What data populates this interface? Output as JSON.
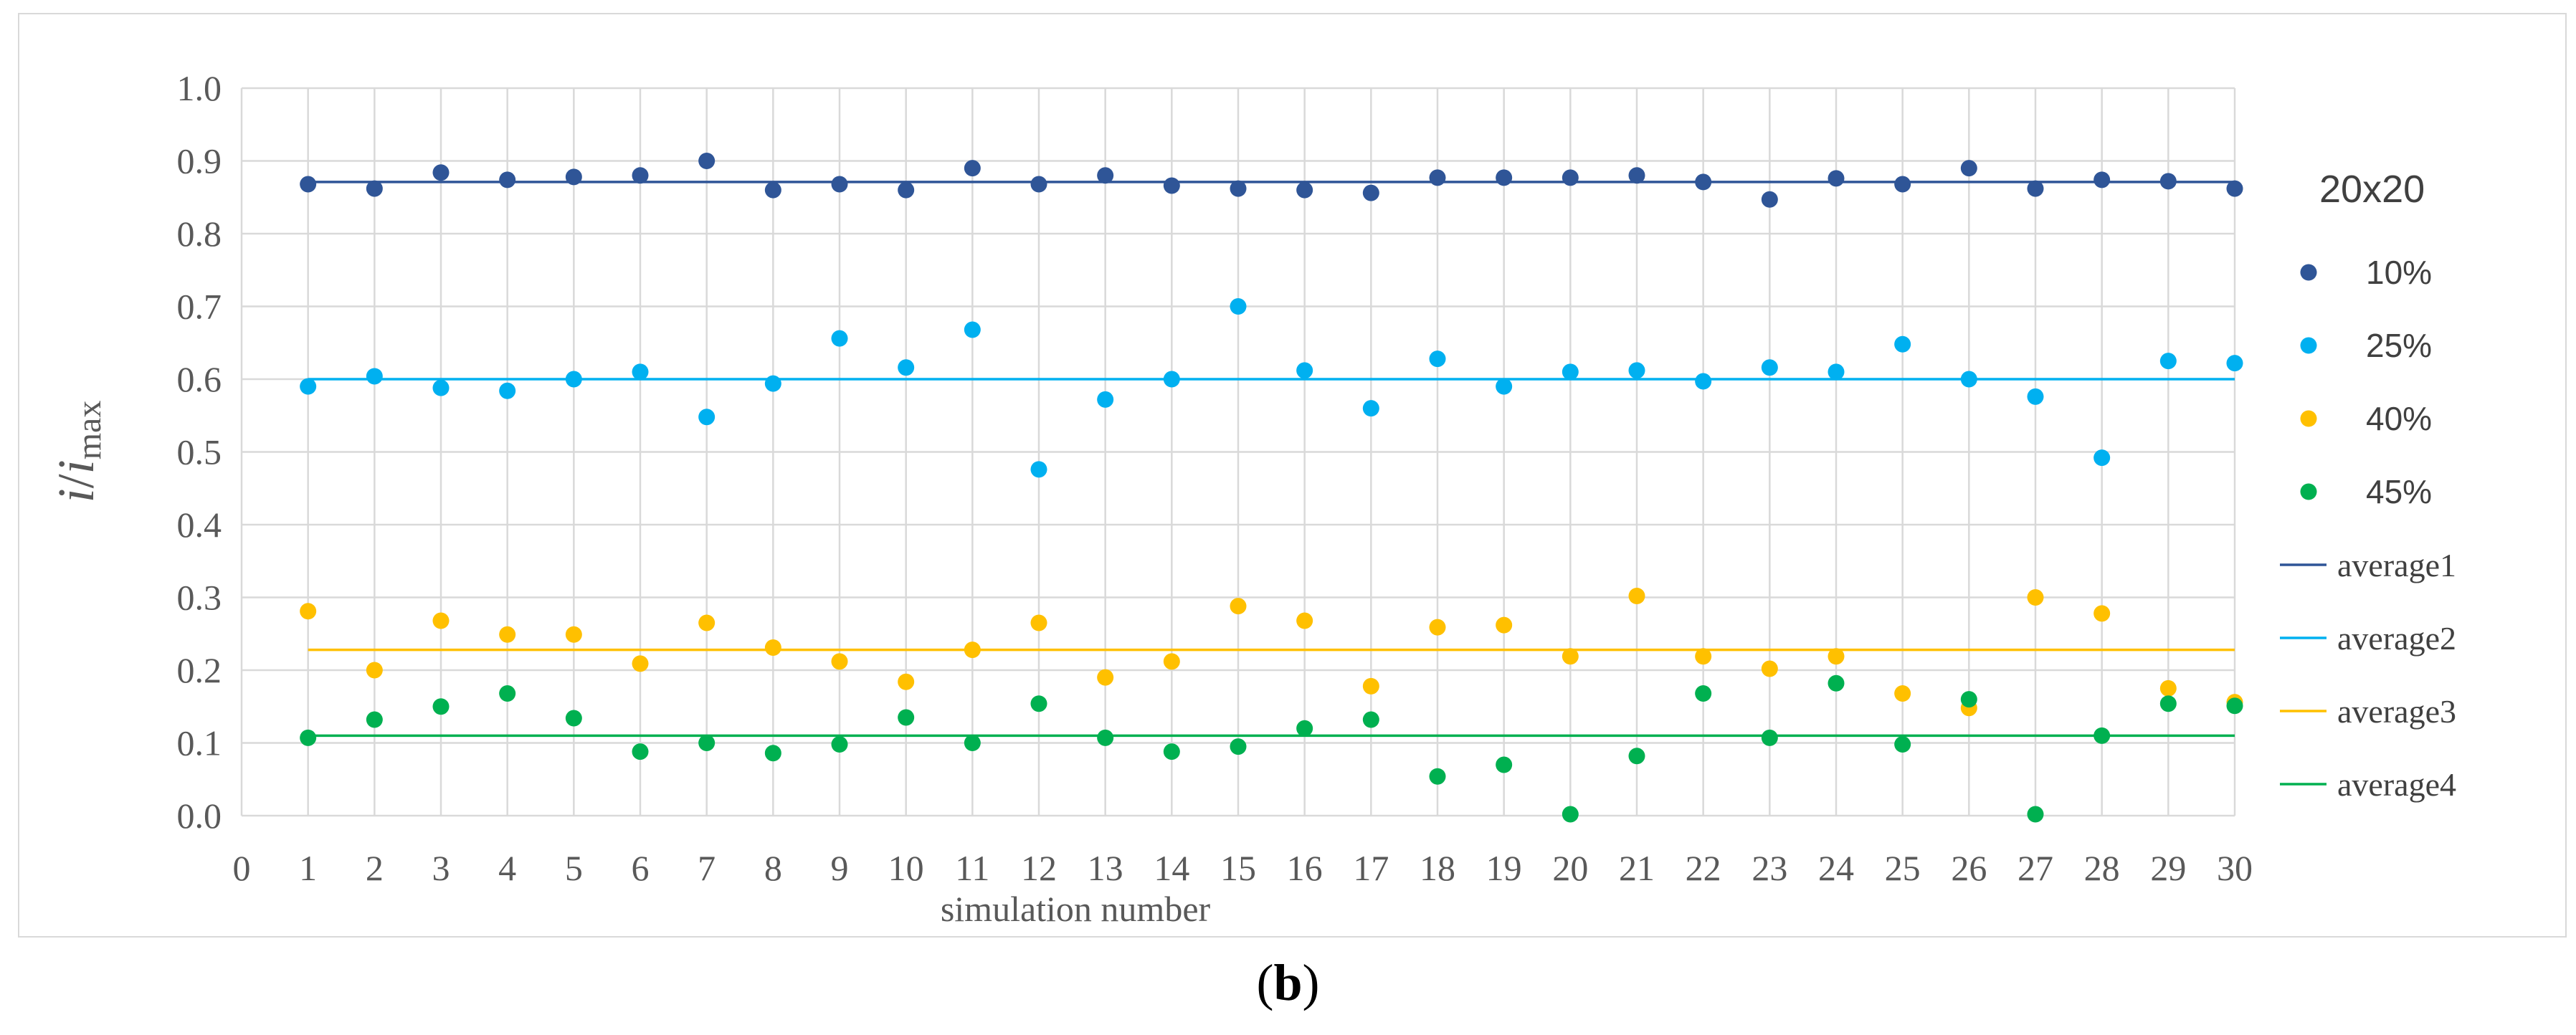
{
  "caption": {
    "open": "(",
    "letter": "b",
    "close": ")"
  },
  "chart_data": {
    "type": "scatter",
    "title": "",
    "xlabel": "simulation number",
    "ylabel": {
      "i": "i",
      "slash": "/",
      "i_max": "i",
      "sub": "max"
    },
    "legend_title": "20x20",
    "xlim": [
      0,
      30
    ],
    "ylim": [
      0.0,
      1.0
    ],
    "x_ticks": [
      "0",
      "1",
      "2",
      "3",
      "4",
      "5",
      "6",
      "7",
      "8",
      "9",
      "10",
      "11",
      "12",
      "13",
      "14",
      "15",
      "16",
      "17",
      "18",
      "19",
      "20",
      "21",
      "22",
      "23",
      "24",
      "25",
      "26",
      "27",
      "28",
      "29",
      "30"
    ],
    "y_ticks": [
      "0.0",
      "0.1",
      "0.2",
      "0.3",
      "0.4",
      "0.5",
      "0.6",
      "0.7",
      "0.8",
      "0.9",
      "1.0"
    ],
    "x": [
      1,
      2,
      3,
      4,
      5,
      6,
      7,
      8,
      9,
      10,
      11,
      12,
      13,
      14,
      15,
      16,
      17,
      18,
      19,
      20,
      21,
      22,
      23,
      24,
      25,
      26,
      27,
      28,
      29,
      30
    ],
    "series": [
      {
        "name": "10%",
        "color": "#2f5597",
        "values": [
          0.868,
          0.862,
          0.884,
          0.874,
          0.878,
          0.88,
          0.9,
          0.86,
          0.868,
          0.86,
          0.89,
          0.868,
          0.88,
          0.866,
          0.862,
          0.86,
          0.856,
          0.877,
          0.877,
          0.877,
          0.88,
          0.871,
          0.847,
          0.876,
          0.868,
          0.89,
          0.862,
          0.874,
          0.872,
          0.862
        ]
      },
      {
        "name": "25%",
        "color": "#00b0f0",
        "values": [
          0.59,
          0.604,
          0.588,
          0.584,
          0.6,
          0.61,
          0.548,
          0.594,
          0.656,
          0.616,
          0.668,
          0.476,
          0.572,
          0.6,
          0.7,
          0.612,
          0.56,
          0.628,
          0.59,
          0.61,
          0.612,
          0.597,
          0.616,
          0.61,
          0.648,
          0.6,
          0.576,
          0.492,
          0.625,
          0.622
        ]
      },
      {
        "name": "40%",
        "color": "#ffc000",
        "values": [
          0.281,
          0.2,
          0.268,
          0.249,
          0.249,
          0.209,
          0.265,
          0.231,
          0.212,
          0.184,
          0.228,
          0.265,
          0.19,
          0.212,
          0.288,
          0.268,
          0.178,
          0.259,
          0.262,
          0.219,
          0.302,
          0.219,
          0.202,
          0.219,
          0.168,
          0.148,
          0.3,
          0.278,
          0.175,
          0.156
        ]
      },
      {
        "name": "45%",
        "color": "#00b050",
        "values": [
          0.107,
          0.132,
          0.15,
          0.168,
          0.134,
          0.088,
          0.1,
          0.086,
          0.098,
          0.135,
          0.1,
          0.154,
          0.107,
          0.088,
          0.095,
          0.12,
          0.132,
          0.054,
          0.07,
          0.002,
          0.082,
          0.168,
          0.107,
          0.182,
          0.098,
          0.16,
          0.002,
          0.11,
          0.154,
          0.151
        ]
      }
    ],
    "averages": [
      {
        "name": "average1",
        "value": 0.871,
        "color": "#2f5597"
      },
      {
        "name": "average2",
        "value": 0.6,
        "color": "#00b0f0"
      },
      {
        "name": "average3",
        "value": 0.228,
        "color": "#ffc000"
      },
      {
        "name": "average4",
        "value": 0.11,
        "color": "#00b050"
      }
    ],
    "grid": true,
    "legend_position": "right"
  }
}
